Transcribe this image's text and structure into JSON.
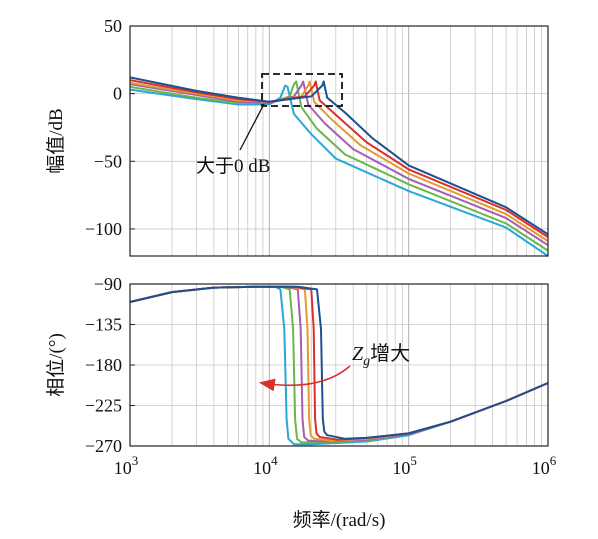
{
  "chart_data": [
    {
      "type": "line",
      "panel": "magnitude",
      "ylabel": "幅值/dB",
      "xscale": "log",
      "xlim": [
        1000,
        1000000
      ],
      "ylim": [
        -120,
        50
      ],
      "yticks": [
        50,
        0,
        -50,
        -100
      ],
      "grid": true,
      "series": [
        {
          "color": "#29a8d4",
          "x": [
            1000,
            3000,
            6000,
            10000,
            12000,
            13000,
            13500,
            15000,
            20000,
            30000,
            100000,
            500000,
            1000000
          ],
          "y": [
            3,
            -4,
            -8,
            -8,
            -3,
            6,
            5,
            -15,
            -30,
            -48,
            -72,
            -99,
            -120
          ]
        },
        {
          "color": "#6ab64a",
          "x": [
            1000,
            3000,
            6000,
            10000,
            14000,
            15000,
            15600,
            17000,
            22000,
            35000,
            100000,
            500000,
            1000000
          ],
          "y": [
            5,
            -3,
            -7,
            -7,
            -2,
            7,
            9,
            -10,
            -26,
            -45,
            -67,
            -96,
            -116
          ]
        },
        {
          "color": "#a65fb0",
          "x": [
            1000,
            3000,
            6000,
            10000,
            15000,
            17000,
            17500,
            19000,
            25000,
            40000,
            100000,
            500000,
            1000000
          ],
          "y": [
            7,
            -1,
            -6,
            -7,
            -2,
            6,
            9,
            -8,
            -22,
            -41,
            -63,
            -92,
            -112
          ]
        },
        {
          "color": "#e69a2e",
          "x": [
            1000,
            3000,
            6000,
            10000,
            17000,
            19000,
            19500,
            21000,
            28000,
            45000,
            100000,
            500000,
            1000000
          ],
          "y": [
            8,
            0,
            -5,
            -6,
            -2,
            6,
            9,
            -6,
            -19,
            -38,
            -59,
            -89,
            -109
          ]
        },
        {
          "color": "#d9302a",
          "x": [
            1000,
            3000,
            6000,
            10000,
            18000,
            21000,
            21500,
            23000,
            31000,
            50000,
            100000,
            500000,
            1000000
          ],
          "y": [
            10,
            1,
            -4,
            -6,
            -2,
            6,
            9,
            -5,
            -17,
            -36,
            -56,
            -86,
            -106
          ]
        },
        {
          "color": "#1d4f91",
          "x": [
            1000,
            3000,
            6000,
            10000,
            20000,
            24000,
            24500,
            26000,
            35000,
            55000,
            100000,
            500000,
            1000000
          ],
          "y": [
            12,
            2,
            -3,
            -6,
            -2,
            6,
            9,
            -3,
            -14,
            -33,
            -53,
            -84,
            -104
          ]
        }
      ],
      "annotations": [
        {
          "text": "大于0 dB"
        }
      ]
    },
    {
      "type": "line",
      "panel": "phase",
      "xlabel": "频率/(rad/s)",
      "ylabel": "相位/(°)",
      "xscale": "log",
      "xlim": [
        1000,
        1000000
      ],
      "ylim": [
        -270,
        -90
      ],
      "yticks": [
        -90,
        -135,
        -180,
        -225,
        -270
      ],
      "xticks": [
        "10",
        "10",
        "10",
        "10"
      ],
      "xtick_exponents": [
        "3",
        "4",
        "5",
        "6"
      ],
      "grid": true,
      "series": [
        {
          "color": "#29a8d4",
          "x": [
            1000,
            2000,
            4000,
            8000,
            11000,
            12000,
            12800,
            13300,
            13700,
            15000,
            20000,
            50000,
            100000,
            200000,
            500000,
            1000000
          ],
          "y": [
            -110,
            -99,
            -94,
            -93,
            -93,
            -96,
            -140,
            -240,
            -262,
            -268,
            -268,
            -265,
            -258,
            -243,
            -220,
            -200
          ]
        },
        {
          "color": "#6ab64a",
          "x": [
            1000,
            2000,
            4000,
            8000,
            12000,
            14000,
            14800,
            15300,
            15800,
            17000,
            22000,
            50000,
            100000,
            200000,
            500000,
            1000000
          ],
          "y": [
            -110,
            -99,
            -94,
            -93,
            -93,
            -96,
            -140,
            -240,
            -262,
            -266,
            -266,
            -264,
            -257,
            -243,
            -220,
            -200
          ]
        },
        {
          "color": "#a65fb0",
          "x": [
            1000,
            2000,
            4000,
            8000,
            13000,
            16000,
            16800,
            17300,
            17800,
            19000,
            25000,
            50000,
            100000,
            200000,
            500000,
            1000000
          ],
          "y": [
            -110,
            -99,
            -94,
            -93,
            -93,
            -96,
            -140,
            -240,
            -260,
            -264,
            -265,
            -263,
            -257,
            -243,
            -220,
            -200
          ]
        },
        {
          "color": "#e69a2e",
          "x": [
            1000,
            2000,
            4000,
            8000,
            14000,
            18000,
            18800,
            19300,
            19800,
            21000,
            28000,
            50000,
            100000,
            200000,
            500000,
            1000000
          ],
          "y": [
            -110,
            -99,
            -94,
            -93,
            -93,
            -96,
            -140,
            -240,
            -258,
            -262,
            -264,
            -262,
            -256,
            -243,
            -220,
            -200
          ]
        },
        {
          "color": "#d9302a",
          "x": [
            1000,
            2000,
            4000,
            8000,
            15000,
            20000,
            20800,
            21300,
            21800,
            23000,
            31000,
            50000,
            100000,
            200000,
            500000,
            1000000
          ],
          "y": [
            -110,
            -99,
            -94,
            -93,
            -93,
            -96,
            -140,
            -240,
            -256,
            -260,
            -263,
            -261,
            -256,
            -243,
            -220,
            -200
          ]
        },
        {
          "color": "#1d4f91",
          "x": [
            1000,
            2000,
            4000,
            8000,
            16000,
            22000,
            23500,
            24200,
            24800,
            26000,
            35000,
            50000,
            100000,
            200000,
            500000,
            1000000
          ],
          "y": [
            -110,
            -99,
            -94,
            -93,
            -93,
            -96,
            -140,
            -240,
            -254,
            -258,
            -262,
            -261,
            -256,
            -243,
            -220,
            -200
          ]
        }
      ],
      "annotations": [
        {
          "text_main": "Z",
          "text_sub": "g",
          "text_suffix": "增大"
        }
      ]
    }
  ]
}
